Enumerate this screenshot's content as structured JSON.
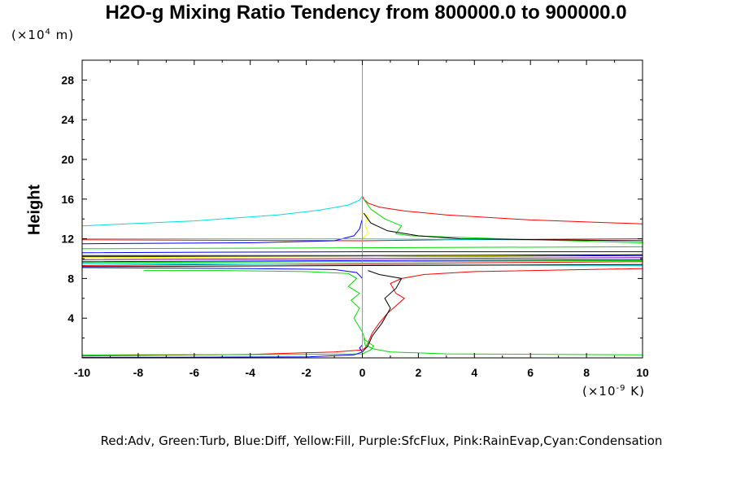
{
  "chart_data": {
    "type": "line",
    "title": "H2O-g Mixing Ratio Tendency from 800000.0 to 900000.0",
    "ylabel": "Height",
    "y_unit_prefix": "(×10",
    "y_unit_exp": "4",
    "y_unit_suffix": " m)",
    "x_unit_prefix": "(×10",
    "x_unit_exp": "-9",
    "x_unit_suffix": " K)",
    "legend_text": "Red:Adv, Green:Turb, Blue:Diff, Yellow:Fill, Purple:SfcFlux, Pink:RainEvap,Cyan:Condensation",
    "xlim": [
      -10,
      10
    ],
    "ylim": [
      0,
      30
    ],
    "x_ticks": [
      -10,
      -8,
      -6,
      -4,
      -2,
      0,
      2,
      4,
      6,
      8,
      10
    ],
    "y_ticks": [
      4,
      8,
      12,
      16,
      20,
      24,
      28
    ],
    "colors": {
      "Adv": "#ff0000",
      "Turb": "#00dd00",
      "Diff": "#0000ff",
      "Fill": "#ffff00",
      "SfcFlux": "#800080",
      "RainEvap": "#ff88ff",
      "Condensation": "#00dddd",
      "Extra": "#000000"
    },
    "series": [
      {
        "color": "#ff0000",
        "points": [
          [
            -10,
            0.2
          ],
          [
            -4,
            0.35
          ],
          [
            -1,
            0.6
          ],
          [
            0,
            0.8
          ],
          [
            0.1,
            1.0
          ],
          [
            0.2,
            1.5
          ],
          [
            0.35,
            2.5
          ],
          [
            0.6,
            3.5
          ],
          [
            0.9,
            4.5
          ],
          [
            1.3,
            5.5
          ],
          [
            1.5,
            6.0
          ],
          [
            1.2,
            6.5
          ],
          [
            1.0,
            7.5
          ],
          [
            1.4,
            8.0
          ],
          [
            2.2,
            8.4
          ],
          [
            4,
            8.7
          ],
          [
            8,
            8.9
          ],
          [
            10,
            9.0
          ]
        ]
      },
      {
        "color": "#ff0000",
        "points": [
          [
            10,
            13.5
          ],
          [
            6,
            13.9
          ],
          [
            3,
            14.4
          ],
          [
            1.5,
            14.8
          ],
          [
            0.6,
            15.2
          ],
          [
            0.2,
            15.6
          ],
          [
            0.05,
            16.0
          ],
          [
            0,
            16.3
          ]
        ]
      },
      {
        "color": "#ff0000",
        "points": [
          [
            -10,
            9.3
          ],
          [
            0,
            9.5
          ],
          [
            10,
            9.7
          ]
        ]
      },
      {
        "color": "#ff0000",
        "points": [
          [
            -10,
            11.9
          ],
          [
            0,
            11.8
          ],
          [
            3,
            11.9
          ],
          [
            10,
            12.0
          ]
        ]
      },
      {
        "color": "#00dd00",
        "points": [
          [
            -10,
            0.3
          ],
          [
            -2,
            0.35
          ],
          [
            0,
            0.4
          ],
          [
            0.3,
            0.8
          ],
          [
            0.4,
            1.2
          ],
          [
            0.1,
            1.8
          ],
          [
            0,
            2.6
          ],
          [
            -0.3,
            4
          ],
          [
            -0.1,
            5
          ],
          [
            -0.4,
            5.8
          ],
          [
            -0.1,
            6.5
          ],
          [
            -0.5,
            7.2
          ],
          [
            -0.2,
            8.0
          ],
          [
            -0.5,
            8.5
          ],
          [
            -2,
            8.7
          ],
          [
            -5,
            8.8
          ],
          [
            -7.8,
            8.8
          ]
        ]
      },
      {
        "color": "#00dd00",
        "points": [
          [
            10,
            0.3
          ],
          [
            3,
            0.4
          ],
          [
            1,
            0.6
          ],
          [
            0.4,
            0.9
          ],
          [
            0.1,
            1.3
          ],
          [
            0.05,
            2
          ]
        ]
      },
      {
        "color": "#00dd00",
        "points": [
          [
            0.05,
            16
          ],
          [
            0.3,
            15
          ],
          [
            0.8,
            14
          ],
          [
            1.4,
            13.3
          ],
          [
            1.2,
            12.5
          ],
          [
            1.7,
            12.3
          ],
          [
            3,
            12.2
          ],
          [
            5,
            12.0
          ],
          [
            10,
            11.6
          ]
        ]
      },
      {
        "color": "#00dd00",
        "points": [
          [
            -10,
            11.0
          ],
          [
            0,
            11.1
          ],
          [
            10,
            11.2
          ]
        ]
      },
      {
        "color": "#00dd00",
        "points": [
          [
            -10,
            9.6
          ],
          [
            0,
            9.7
          ],
          [
            10,
            9.8
          ]
        ]
      },
      {
        "color": "#0000ff",
        "points": [
          [
            -10,
            0.05
          ],
          [
            -2,
            0.1
          ],
          [
            -0.3,
            0.3
          ],
          [
            0,
            0.6
          ],
          [
            -0.1,
            1
          ],
          [
            0,
            1.3
          ],
          [
            0,
            2
          ]
        ]
      },
      {
        "color": "#0000ff",
        "points": [
          [
            -10,
            9.1
          ],
          [
            -4,
            9.0
          ],
          [
            -1,
            8.9
          ],
          [
            -0.2,
            8.6
          ],
          [
            -0.1,
            8.3
          ],
          [
            0,
            8.0
          ]
        ]
      },
      {
        "color": "#0000ff",
        "points": [
          [
            -10,
            9.7
          ],
          [
            0,
            9.8
          ],
          [
            10,
            9.9
          ]
        ]
      },
      {
        "color": "#0000ff",
        "points": [
          [
            -10,
            10.2
          ],
          [
            0,
            10.2
          ],
          [
            10,
            10.3
          ]
        ]
      },
      {
        "color": "#0000ff",
        "points": [
          [
            -10,
            10.6
          ],
          [
            0,
            10.7
          ],
          [
            10,
            10.7
          ]
        ]
      },
      {
        "color": "#0000ff",
        "points": [
          [
            -10,
            11.5
          ],
          [
            -4,
            11.6
          ],
          [
            -1,
            11.8
          ],
          [
            -0.3,
            12.3
          ],
          [
            -0.1,
            13.0
          ],
          [
            0,
            14.0
          ]
        ]
      },
      {
        "color": "#ffff00",
        "points": [
          [
            -10,
            10.1
          ],
          [
            0,
            10.2
          ],
          [
            10,
            10.4
          ]
        ]
      },
      {
        "color": "#ffff00",
        "points": [
          [
            0,
            12.0
          ],
          [
            0.2,
            12.6
          ],
          [
            0.1,
            13.4
          ],
          [
            0.2,
            14.3
          ],
          [
            0,
            14.6
          ]
        ]
      },
      {
        "color": "#800080",
        "points": [
          [
            -10,
            9.9
          ],
          [
            0,
            10.0
          ],
          [
            10,
            10.1
          ]
        ]
      },
      {
        "color": "#00dddd",
        "points": [
          [
            -10,
            13.3
          ],
          [
            -6,
            13.8
          ],
          [
            -3,
            14.4
          ],
          [
            -1.5,
            14.9
          ],
          [
            -0.5,
            15.4
          ],
          [
            -0.1,
            15.9
          ],
          [
            0,
            16.3
          ]
        ]
      },
      {
        "color": "#00dddd",
        "points": [
          [
            -10,
            12.0
          ],
          [
            0,
            12.0
          ],
          [
            10,
            11.8
          ]
        ]
      },
      {
        "color": "#00dddd",
        "points": [
          [
            -10,
            9.5
          ],
          [
            0,
            9.4
          ],
          [
            10,
            9.3
          ]
        ]
      },
      {
        "color": "#00dddd",
        "points": [
          [
            0,
            0
          ],
          [
            0,
            30
          ]
        ]
      },
      {
        "color": "#000000",
        "points": [
          [
            -10,
            9.2
          ],
          [
            0,
            9.3
          ],
          [
            10,
            9.4
          ]
        ]
      },
      {
        "color": "#000000",
        "points": [
          [
            -10,
            10.3
          ],
          [
            0,
            10.3
          ],
          [
            10,
            10.4
          ]
        ]
      },
      {
        "color": "#000000",
        "points": [
          [
            0,
            0.6
          ],
          [
            0.2,
            1.2
          ],
          [
            0.35,
            2.2
          ],
          [
            0.7,
            3.5
          ],
          [
            1.0,
            5.0
          ],
          [
            0.8,
            6.0
          ],
          [
            1.2,
            7.0
          ],
          [
            1.4,
            8.0
          ],
          [
            0.6,
            8.4
          ],
          [
            0.2,
            8.8
          ]
        ]
      },
      {
        "color": "#000000",
        "points": [
          [
            0.05,
            14.6
          ],
          [
            0.3,
            13.6
          ],
          [
            0.9,
            12.8
          ],
          [
            2,
            12.3
          ],
          [
            3.5,
            12.0
          ],
          [
            10,
            11.8
          ]
        ]
      }
    ]
  }
}
